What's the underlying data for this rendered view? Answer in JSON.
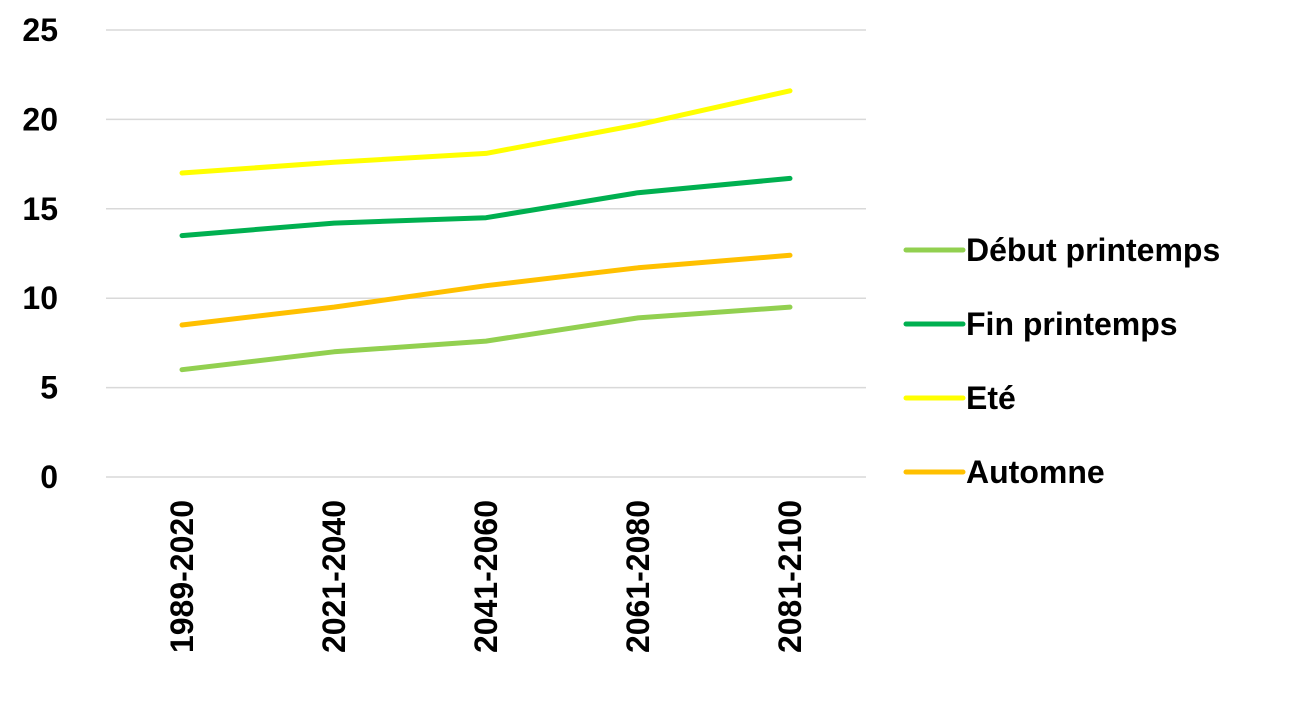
{
  "chart_data": {
    "type": "line",
    "title": "",
    "xlabel": "",
    "ylabel": "",
    "categories": [
      "1989-2020",
      "2021-2040",
      "2041-2060",
      "2061-2080",
      "2081-2100"
    ],
    "ylim": [
      0,
      25
    ],
    "yticks": [
      "0",
      "5",
      "10",
      "15",
      "20",
      "25"
    ],
    "grid": true,
    "legend_position": "right",
    "series": [
      {
        "name": "Début printemps",
        "color": "#92d050",
        "values": [
          6.0,
          7.0,
          7.6,
          8.9,
          9.5
        ]
      },
      {
        "name": "Fin printemps",
        "color": "#00b050",
        "values": [
          13.5,
          14.2,
          14.5,
          15.9,
          16.7
        ]
      },
      {
        "name": "Eté",
        "color": "#ffff00",
        "values": [
          17.0,
          17.6,
          18.1,
          19.7,
          21.6
        ]
      },
      {
        "name": "Automne",
        "color": "#ffc000",
        "values": [
          8.5,
          9.5,
          10.7,
          11.7,
          12.4
        ]
      }
    ]
  }
}
